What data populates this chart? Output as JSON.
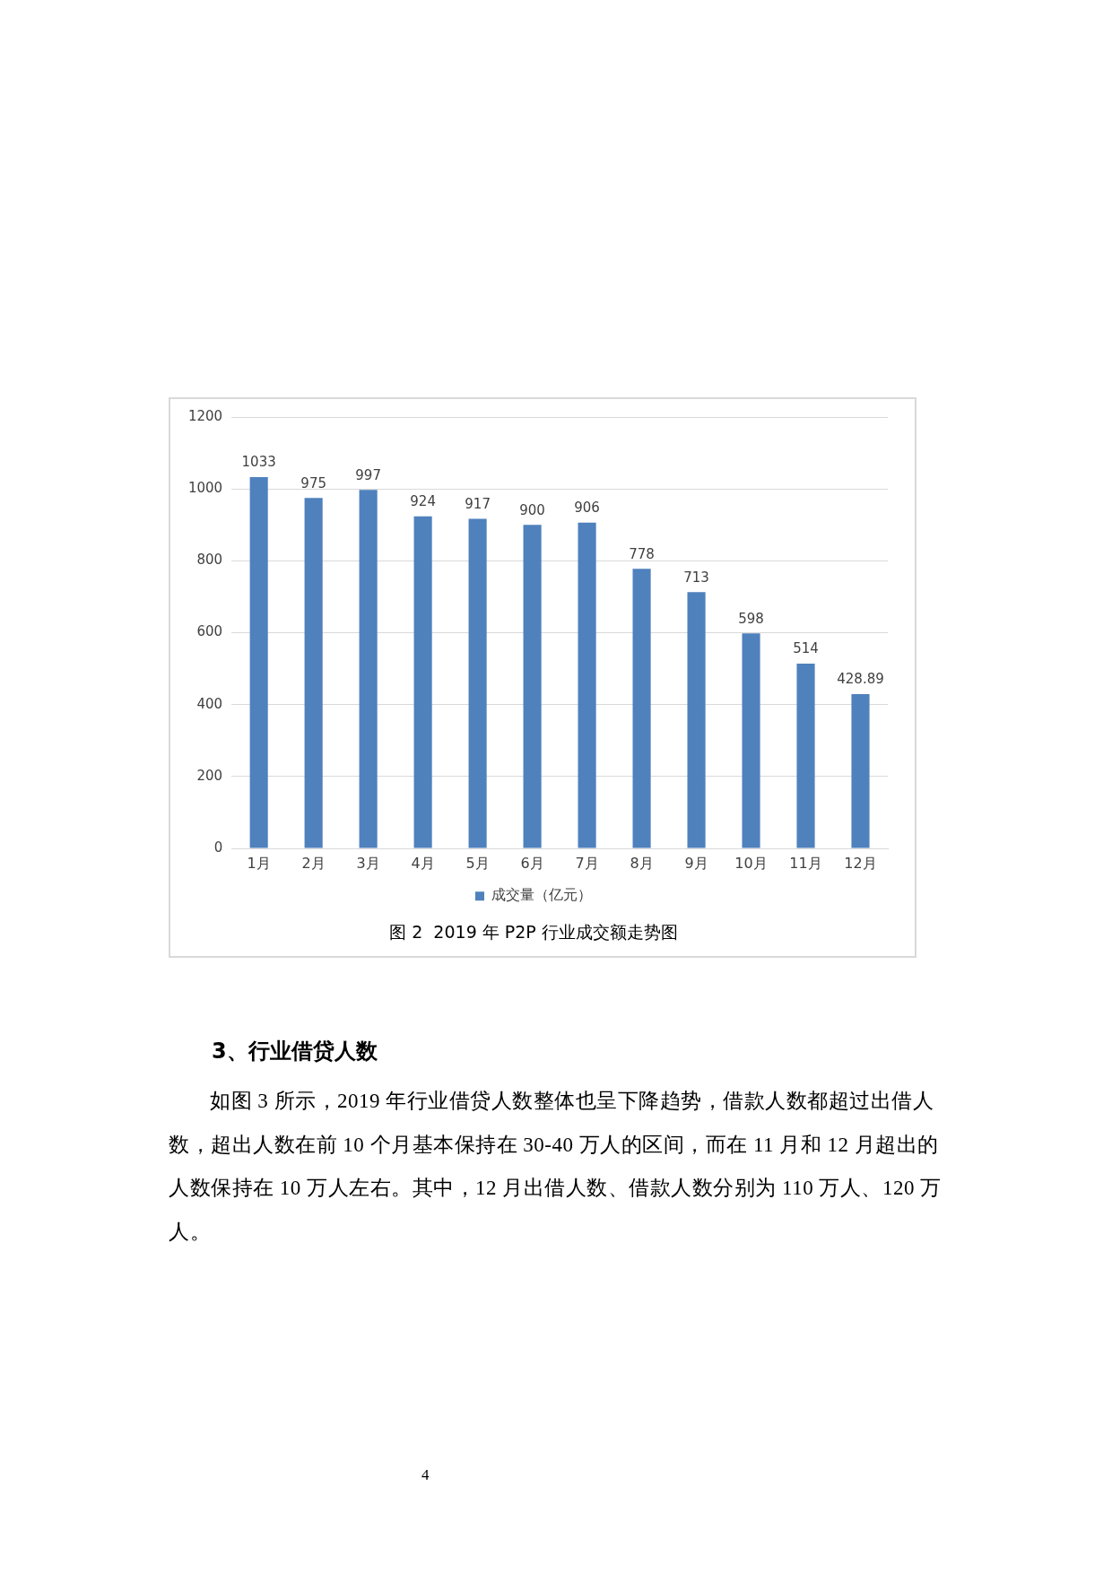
{
  "chart_data": {
    "type": "bar",
    "title": "图 2  2019 年 P2P 行业成交额走势图",
    "categories": [
      "1月",
      "2月",
      "3月",
      "4月",
      "5月",
      "6月",
      "7月",
      "8月",
      "9月",
      "10月",
      "11月",
      "12月"
    ],
    "series": [
      {
        "name": "成交量（亿元）",
        "color": "#4f81bd",
        "values": [
          1033,
          975,
          997,
          924,
          917,
          900,
          906,
          778,
          713,
          598,
          514,
          428.89
        ]
      }
    ],
    "ylim": [
      0,
      1200
    ],
    "yticks": [
      0,
      200,
      400,
      600,
      800,
      1000,
      1200
    ],
    "grid": "y",
    "legend": "bottom",
    "data_labels": true,
    "annotations": [
      "3、行业借贷人数",
      "如图 3 所示，2019 年行业借贷人数整体也呈下降趋势，借款人数都超过出借人数，超出人数在前 10 个月基本保持在 30-40 万人的区间，而在 11 月和 12 月超出的人数保持在 10 万人左右。其中，12 月出借人数、借款人数分别为 110 万人、120 万人。",
      "4"
    ]
  }
}
